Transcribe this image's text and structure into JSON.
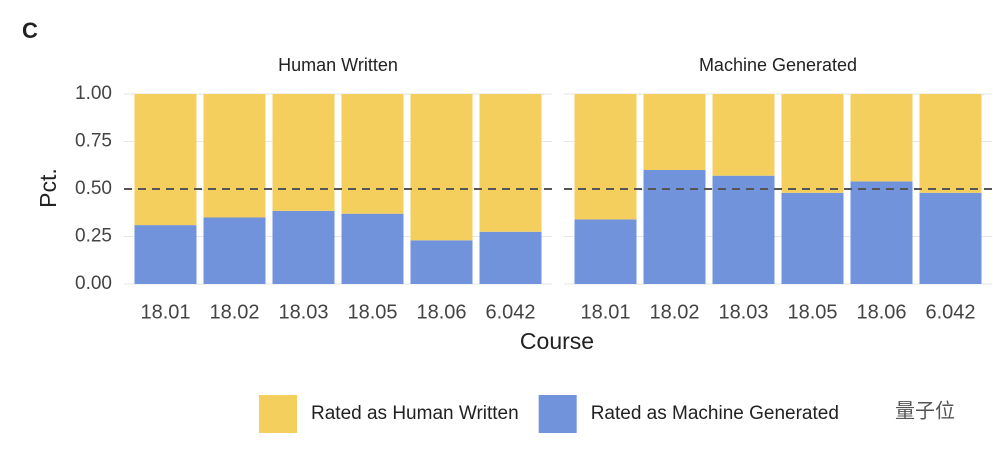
{
  "chart_data": {
    "type": "bar",
    "stacked": true,
    "panel_label": "C",
    "x_label": "Course",
    "y_label": "Pct.",
    "ylim": [
      0,
      1
    ],
    "yticks": [
      {
        "value": 0,
        "label": "0.00"
      },
      {
        "value": 0.25,
        "label": "0.25"
      },
      {
        "value": 0.5,
        "label": "0.50"
      },
      {
        "value": 0.75,
        "label": "0.75"
      },
      {
        "value": 1,
        "label": "1.00"
      }
    ],
    "grid": true,
    "hline": 0.5,
    "legend": "bottom",
    "legend_reverse": true,
    "series": [
      {
        "name": "Rated as Machine Generated",
        "color": "#7193dc"
      },
      {
        "name": "Rated as Human Written",
        "color": "#f5cf5e"
      }
    ],
    "facets": [
      {
        "title": "Human Written",
        "categories": [
          "18.01",
          "18.02",
          "18.03",
          "18.05",
          "18.06",
          "6.042"
        ],
        "series": [
          {
            "values": [
              0.31,
              0.35,
              0.385,
              0.37,
              0.23,
              0.275
            ]
          },
          {
            "values": [
              0.69,
              0.65,
              0.615,
              0.63,
              0.77,
              0.725
            ]
          }
        ]
      },
      {
        "title": "Machine Generated",
        "categories": [
          "18.01",
          "18.02",
          "18.03",
          "18.05",
          "18.06",
          "6.042"
        ],
        "series": [
          {
            "values": [
              0.34,
              0.6,
              0.57,
              0.48,
              0.54,
              0.48
            ]
          },
          {
            "values": [
              0.66,
              0.4,
              0.43,
              0.52,
              0.46,
              0.52
            ]
          }
        ]
      }
    ],
    "watermark": "量子位"
  }
}
